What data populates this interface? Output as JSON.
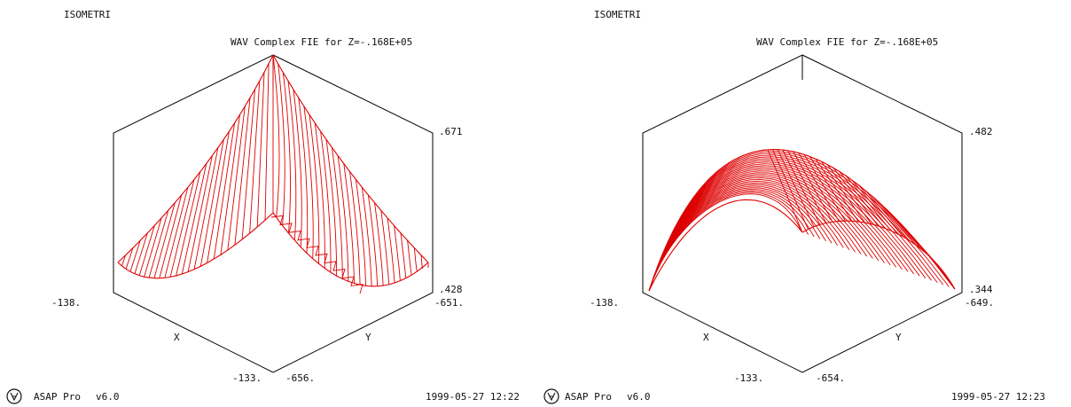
{
  "chart_data": [
    {
      "type": "surface",
      "view_label": "ISOMETRI",
      "title": "WAV  Complex FIE for Z=-.168E+05",
      "x_axis": {
        "label": "X",
        "min_label": "-138.",
        "max_label": "-133."
      },
      "y_axis": {
        "label": "Y",
        "min_label": "-656.",
        "max_label": "-651."
      },
      "z_axis": {
        "max_label": ".671",
        "min_label": ".428"
      },
      "surface_shape": "cusp peak at rear corner with a second cusp in the middle front",
      "color": "#dd0000",
      "footer": {
        "software": "ASAP Pro",
        "version": "v6.0",
        "timestamp": "1999-05-27  12:22"
      }
    },
    {
      "type": "surface",
      "view_label": "ISOMETRI",
      "title": "WAV  Complex FIE for Z=-.168E+05",
      "x_axis": {
        "label": "X",
        "min_label": "-138.",
        "max_label": "-133."
      },
      "y_axis": {
        "label": "Y",
        "min_label": "-654.",
        "max_label": "-649."
      },
      "z_axis": {
        "max_label": ".482",
        "min_label": ".344"
      },
      "surface_shape": "smooth dome (arch-shaped traces)",
      "color": "#dd0000",
      "footer": {
        "software": "ASAP Pro",
        "version": "v6.0",
        "timestamp": "1999-05-27  12:23"
      }
    }
  ]
}
